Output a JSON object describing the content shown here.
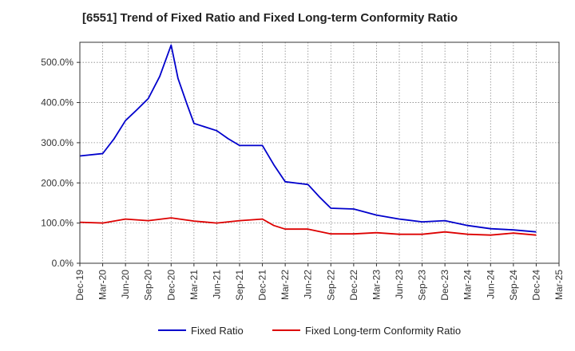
{
  "chart_data": {
    "type": "line",
    "title": "[6551]  Trend of Fixed Ratio and Fixed Long-term Conformity Ratio",
    "xlabel": "",
    "ylabel": "",
    "categories": [
      "Dec-19",
      "Mar-20",
      "Jun-20",
      "Sep-20",
      "Dec-20",
      "Mar-21",
      "Jun-21",
      "Sep-21",
      "Dec-21",
      "Mar-22",
      "Jun-22",
      "Sep-22",
      "Dec-22",
      "Mar-23",
      "Jun-23",
      "Sep-23",
      "Dec-23",
      "Mar-24",
      "Jun-24",
      "Sep-24",
      "Dec-24",
      "Mar-25"
    ],
    "ylim": [
      0,
      550
    ],
    "yticks": [
      0,
      100,
      200,
      300,
      400,
      500
    ],
    "ytick_labels": [
      "0.0%",
      "100.0%",
      "200.0%",
      "300.0%",
      "400.0%",
      "500.0%"
    ],
    "grid": true,
    "legend_position": "bottom",
    "series": [
      {
        "name": "Fixed Ratio",
        "color": "#0000cc",
        "x": [
          0,
          1,
          1.5,
          2,
          2.5,
          3,
          3.5,
          4,
          4.3,
          4.7,
          5,
          6,
          6.5,
          7,
          8,
          8.5,
          9,
          10,
          10.5,
          11,
          12,
          13,
          14,
          15,
          16,
          17,
          18,
          19,
          20
        ],
        "values": [
          267,
          273,
          310,
          355,
          382,
          410,
          465,
          543,
          460,
          395,
          348,
          330,
          310,
          293,
          293,
          245,
          203,
          196,
          165,
          137,
          135,
          120,
          110,
          103,
          106,
          94,
          86,
          83,
          78
        ]
      },
      {
        "name": "Fixed Long-term Conformity Ratio",
        "color": "#dd0000",
        "x": [
          0,
          1,
          2,
          3,
          4,
          5,
          6,
          7,
          8,
          8.5,
          9,
          10,
          11,
          12,
          13,
          14,
          15,
          16,
          17,
          18,
          19,
          20
        ],
        "values": [
          102,
          100,
          110,
          106,
          113,
          105,
          100,
          106,
          110,
          94,
          85,
          85,
          73,
          73,
          76,
          72,
          72,
          78,
          72,
          70,
          75,
          70
        ]
      }
    ]
  }
}
